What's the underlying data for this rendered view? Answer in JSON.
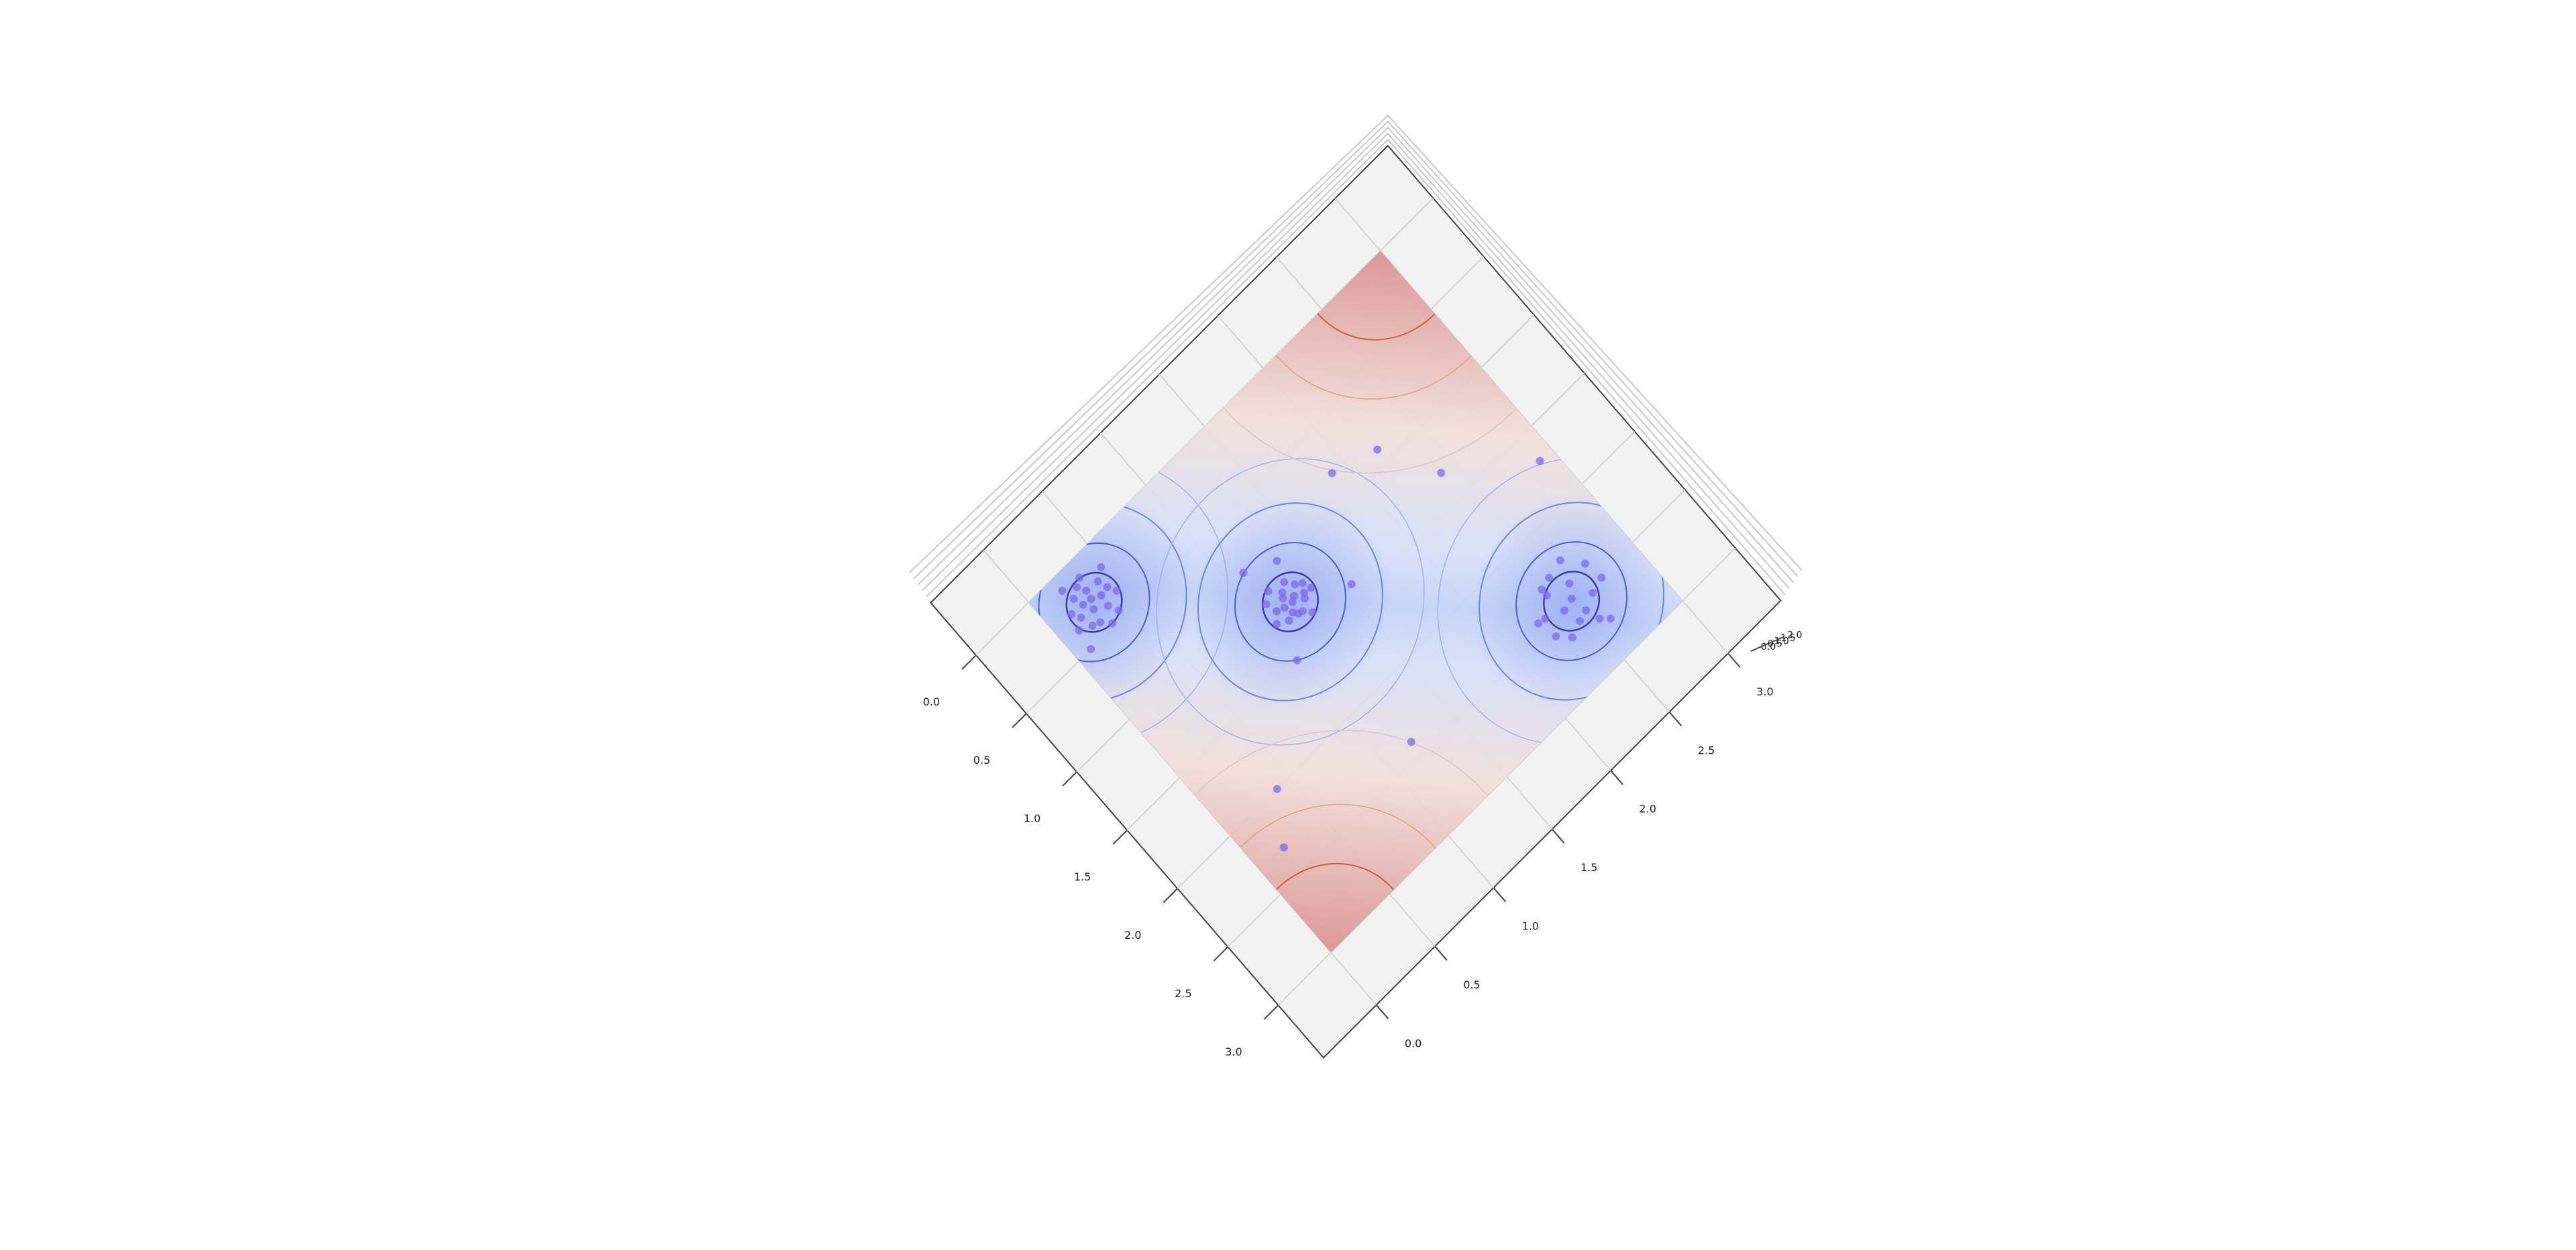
{
  "chart_data": {
    "type": "scatter3d",
    "xlim": [
      0,
      3
    ],
    "ylim": [
      0,
      3
    ],
    "zlim": [
      0,
      2
    ],
    "xticks": [
      {
        "value": 0,
        "label": "0.0"
      },
      {
        "value": 0.5,
        "label": "0.5"
      },
      {
        "value": 1,
        "label": "1.0"
      },
      {
        "value": 1.5,
        "label": "1.5"
      },
      {
        "value": 2,
        "label": "2.0"
      },
      {
        "value": 2.5,
        "label": "2.5"
      },
      {
        "value": 3,
        "label": "3.0"
      }
    ],
    "yticks": [
      {
        "value": 0,
        "label": "0.0"
      },
      {
        "value": 0.5,
        "label": "0.5"
      },
      {
        "value": 1,
        "label": "1.0"
      },
      {
        "value": 1.5,
        "label": "1.5"
      },
      {
        "value": 2,
        "label": "2.0"
      },
      {
        "value": 2.5,
        "label": "2.5"
      },
      {
        "value": 3,
        "label": "3.0"
      }
    ],
    "zticks": [
      {
        "value": 0,
        "label": "0.0"
      },
      {
        "value": 0.5,
        "label": "0.5"
      },
      {
        "value": 1,
        "label": "1.0"
      },
      {
        "value": 1.5,
        "label": "1.5"
      },
      {
        "value": 2,
        "label": "2.0"
      }
    ],
    "grid": true,
    "series": [
      {
        "color": "#7b68ee",
        "x": [
          0.15,
          0.22,
          0.31,
          0.38,
          0.42,
          0.27,
          0.19,
          0.35,
          0.45,
          0.25,
          0.33,
          0.12,
          0.29,
          0.4,
          0.21,
          0.36,
          0.3,
          0.48,
          0.17,
          0.26,
          0.5,
          0.1,
          1.12,
          1.2,
          1.25,
          1.18,
          1.3,
          1.08,
          1.22,
          1.15,
          1.28,
          1.21,
          1.1,
          1.17,
          1.26,
          1.19,
          1.24,
          1.35,
          1.05,
          1.23,
          1.14,
          1.29,
          0.95,
          1.5,
          1.4,
          0.85,
          2.3,
          2.45,
          2.55,
          2.62,
          2.38,
          2.7,
          2.48,
          2.25,
          2.58,
          2.4,
          2.66,
          2.35,
          2.52,
          2.75,
          2.44,
          2.6,
          2.28,
          2.5,
          0.8,
          2.4,
          1.3,
          2.0,
          0.9,
          2.3,
          1.7
        ],
        "y": [
          0.28,
          0.4,
          0.18,
          0.35,
          0.25,
          0.3,
          0.22,
          0.45,
          0.38,
          0.15,
          0.27,
          0.33,
          0.42,
          0.2,
          0.31,
          0.12,
          0.36,
          0.3,
          0.47,
          0.24,
          0.1,
          0.2,
          1.2,
          1.15,
          1.28,
          1.1,
          1.22,
          1.25,
          1.3,
          1.18,
          1.12,
          1.21,
          1.08,
          1.33,
          1.17,
          1.24,
          1.05,
          1.26,
          1.14,
          1.35,
          1.29,
          1.19,
          1.3,
          1.0,
          1.55,
          1.1,
          2.4,
          2.3,
          2.62,
          2.45,
          2.7,
          2.55,
          2.5,
          2.6,
          2.28,
          2.55,
          2.35,
          2.4,
          2.72,
          2.6,
          2.25,
          2.52,
          2.48,
          2.42,
          1.9,
          1.2,
          2.4,
          0.4,
          2.2,
          0.2,
          2.9
        ]
      }
    ]
  }
}
